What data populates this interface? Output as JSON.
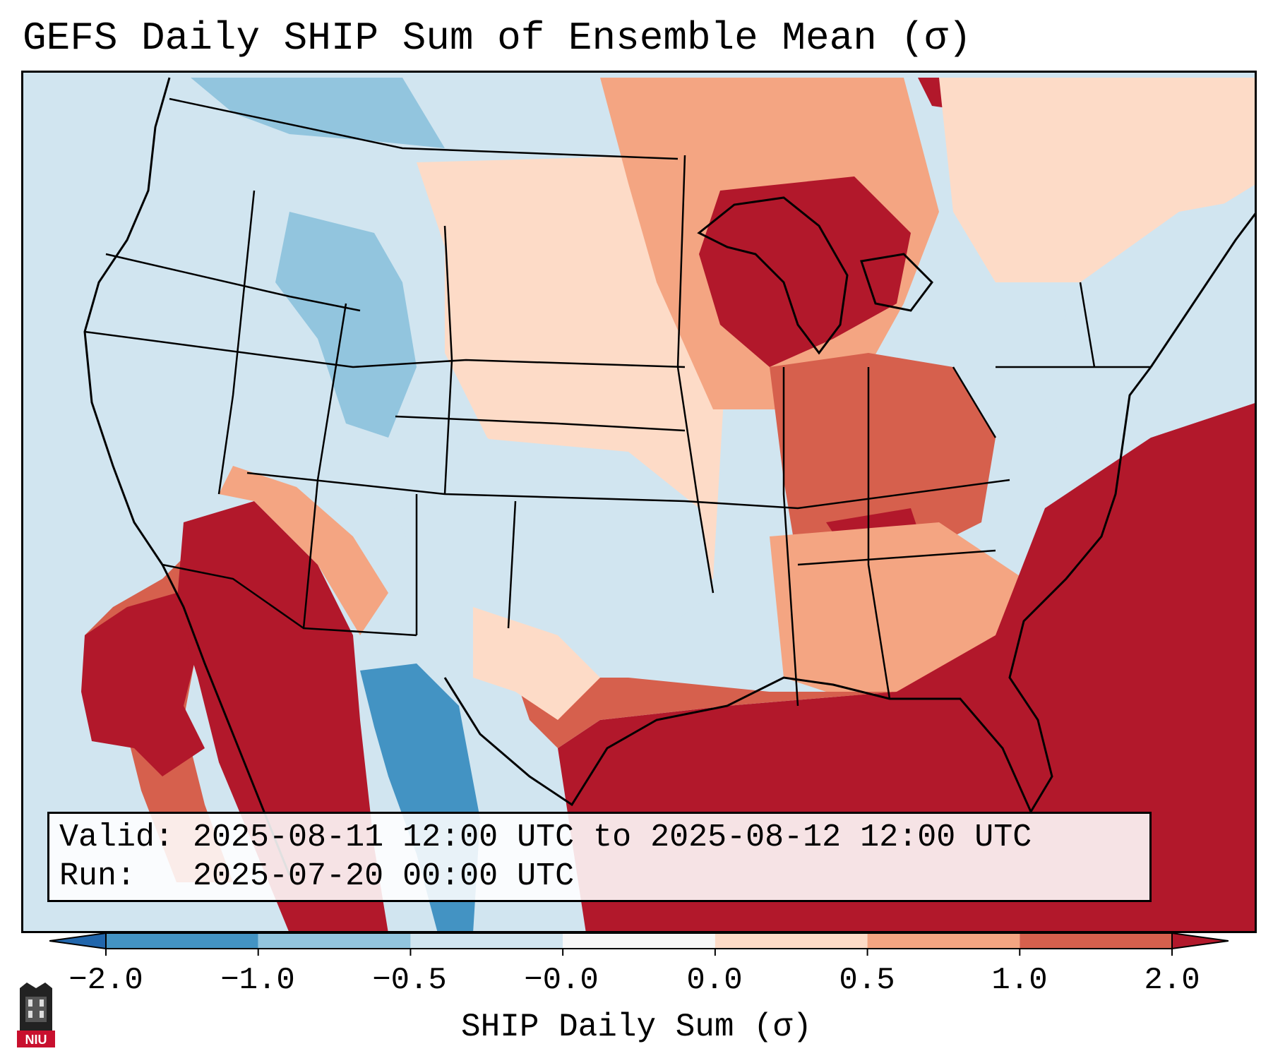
{
  "title": "GEFS Daily SHIP Sum of Ensemble Mean (σ)",
  "info": {
    "valid_line": "Valid: 2025-08-11 12:00 UTC to 2025-08-12 12:00 UTC",
    "run_line": "Run:   2025-07-20 00:00 UTC"
  },
  "colorbar": {
    "label": "SHIP Daily Sum (σ)",
    "ticks": [
      "−2.0",
      "−1.0",
      "−0.5",
      "−0.0",
      "0.0",
      "0.5",
      "1.0",
      "2.0"
    ],
    "colors": [
      "#2166ac",
      "#4393c3",
      "#92c5de",
      "#d1e5f0",
      "#f7f7f7",
      "#fddbc7",
      "#f4a582",
      "#d6604d",
      "#b2182b"
    ]
  },
  "logo": {
    "text": "NIU"
  }
}
